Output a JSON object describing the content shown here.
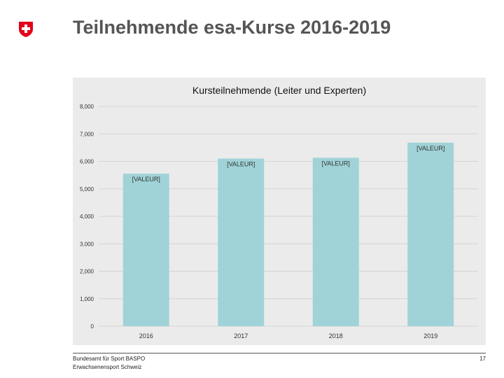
{
  "slide": {
    "title": "Teilnehmende esa-Kurse 2016-2019",
    "footer_org": "Bundesamt für Sport BASPO",
    "footer_dept": "Erwachsenensport Schweiz",
    "page_number": "17"
  },
  "logo": {
    "icon": "swiss-cross-shield-icon",
    "color": "#e2001a"
  },
  "chart_data": {
    "type": "bar",
    "title": "Kursteilnehmende (Leiter und Experten)",
    "xlabel": "",
    "ylabel": "",
    "categories": [
      "2016",
      "2017",
      "2018",
      "2019"
    ],
    "values": [
      5550,
      6100,
      6130,
      6680
    ],
    "data_labels": [
      "[VALEUR]",
      "[VALEUR]",
      "[VALEUR]",
      "[VALEUR]"
    ],
    "ylim": [
      0,
      8000
    ],
    "yticks": [
      0,
      1000,
      2000,
      3000,
      4000,
      5000,
      6000,
      7000,
      8000
    ],
    "ytick_labels": [
      "0",
      "1,000",
      "2,000",
      "3,000",
      "4,000",
      "5,000",
      "6,000",
      "7,000",
      "8,000"
    ],
    "grid": true,
    "legend": "none",
    "bar_color": "#a0d3d8",
    "background": "#ebebeb"
  }
}
